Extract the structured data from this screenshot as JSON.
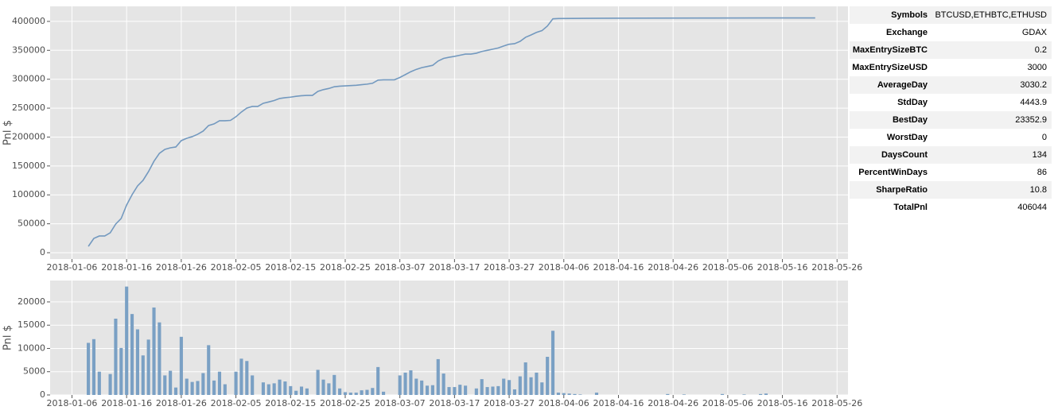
{
  "chart_data": [
    {
      "type": "line",
      "y_label": "Pnl $",
      "color": "#7399bf",
      "grid": true,
      "x": [
        "2018-01-09",
        "2018-01-10",
        "2018-01-11",
        "2018-01-12",
        "2018-01-13",
        "2018-01-14",
        "2018-01-15",
        "2018-01-16",
        "2018-01-17",
        "2018-01-18",
        "2018-01-19",
        "2018-01-20",
        "2018-01-21",
        "2018-01-22",
        "2018-01-23",
        "2018-01-24",
        "2018-01-25",
        "2018-01-26",
        "2018-01-27",
        "2018-01-28",
        "2018-01-29",
        "2018-01-30",
        "2018-01-31",
        "2018-02-01",
        "2018-02-02",
        "2018-02-03",
        "2018-02-04",
        "2018-02-05",
        "2018-02-06",
        "2018-02-07",
        "2018-02-08",
        "2018-02-09",
        "2018-02-10",
        "2018-02-11",
        "2018-02-12",
        "2018-02-13",
        "2018-02-14",
        "2018-02-15",
        "2018-02-16",
        "2018-02-17",
        "2018-02-18",
        "2018-02-19",
        "2018-02-20",
        "2018-02-21",
        "2018-02-22",
        "2018-02-23",
        "2018-02-24",
        "2018-02-25",
        "2018-02-26",
        "2018-02-27",
        "2018-02-28",
        "2018-03-01",
        "2018-03-02",
        "2018-03-03",
        "2018-03-04",
        "2018-03-05",
        "2018-03-06",
        "2018-03-07",
        "2018-03-08",
        "2018-03-09",
        "2018-03-10",
        "2018-03-11",
        "2018-03-12",
        "2018-03-13",
        "2018-03-14",
        "2018-03-15",
        "2018-03-16",
        "2018-03-17",
        "2018-03-18",
        "2018-03-19",
        "2018-03-20",
        "2018-03-21",
        "2018-03-22",
        "2018-03-23",
        "2018-03-24",
        "2018-03-25",
        "2018-03-26",
        "2018-03-27",
        "2018-03-28",
        "2018-03-29",
        "2018-03-30",
        "2018-03-31",
        "2018-04-01",
        "2018-04-02",
        "2018-04-03",
        "2018-04-04",
        "2018-04-05",
        "2018-04-10",
        "2018-04-20",
        "2018-05-01",
        "2018-05-13",
        "2018-05-22"
      ],
      "values": [
        11000,
        24700,
        28900,
        28900,
        34400,
        49500,
        59100,
        82500,
        100300,
        115500,
        125100,
        140200,
        158100,
        171800,
        178700,
        181400,
        182800,
        193800,
        197900,
        200700,
        204800,
        210300,
        219900,
        222700,
        228200,
        228200,
        228800,
        235100,
        243300,
        250200,
        252900,
        253000,
        258400,
        260700,
        263200,
        266700,
        268000,
        269000,
        270500,
        271500,
        272000,
        272000,
        279000,
        282000,
        284000,
        287000,
        288000,
        288500,
        289000,
        289500,
        290500,
        291500,
        293000,
        298500,
        299000,
        299000,
        299000,
        303000,
        308000,
        313000,
        317000,
        320000,
        322000,
        324000,
        331500,
        336000,
        338000,
        339500,
        341500,
        343500,
        343500,
        345000,
        348000,
        350000,
        352000,
        354000,
        357500,
        360500,
        361500,
        365500,
        372500,
        376500,
        381000,
        384000,
        392000,
        404500,
        405000,
        405300,
        405600,
        405800,
        406000,
        406044
      ],
      "xlim": [
        "2018-01-02",
        "2018-05-28"
      ],
      "xticks": [
        "2018-01-06",
        "2018-01-16",
        "2018-01-26",
        "2018-02-05",
        "2018-02-15",
        "2018-02-25",
        "2018-03-07",
        "2018-03-17",
        "2018-03-27",
        "2018-04-06",
        "2018-04-16",
        "2018-04-26",
        "2018-05-06",
        "2018-05-16",
        "2018-05-26"
      ],
      "ylim": [
        -11000,
        426000
      ],
      "yticks": [
        0,
        50000,
        100000,
        150000,
        200000,
        250000,
        300000,
        350000,
        400000
      ]
    },
    {
      "type": "bar",
      "y_label": "Pnl $",
      "color": "#7aa0c4",
      "grid": true,
      "x": [
        "2018-01-09",
        "2018-01-10",
        "2018-01-11",
        "2018-01-13",
        "2018-01-14",
        "2018-01-15",
        "2018-01-16",
        "2018-01-17",
        "2018-01-18",
        "2018-01-19",
        "2018-01-20",
        "2018-01-21",
        "2018-01-22",
        "2018-01-23",
        "2018-01-24",
        "2018-01-25",
        "2018-01-26",
        "2018-01-27",
        "2018-01-28",
        "2018-01-29",
        "2018-01-30",
        "2018-01-31",
        "2018-02-01",
        "2018-02-02",
        "2018-02-03",
        "2018-02-05",
        "2018-02-06",
        "2018-02-07",
        "2018-02-08",
        "2018-02-10",
        "2018-02-11",
        "2018-02-12",
        "2018-02-13",
        "2018-02-14",
        "2018-02-15",
        "2018-02-16",
        "2018-02-17",
        "2018-02-18",
        "2018-02-20",
        "2018-02-21",
        "2018-02-22",
        "2018-02-23",
        "2018-02-24",
        "2018-02-25",
        "2018-02-26",
        "2018-02-27",
        "2018-02-28",
        "2018-03-01",
        "2018-03-02",
        "2018-03-03",
        "2018-03-04",
        "2018-03-07",
        "2018-03-08",
        "2018-03-09",
        "2018-03-10",
        "2018-03-11",
        "2018-03-12",
        "2018-03-13",
        "2018-03-14",
        "2018-03-15",
        "2018-03-16",
        "2018-03-17",
        "2018-03-18",
        "2018-03-19",
        "2018-03-21",
        "2018-03-22",
        "2018-03-23",
        "2018-03-24",
        "2018-03-25",
        "2018-03-26",
        "2018-03-27",
        "2018-03-28",
        "2018-03-29",
        "2018-03-30",
        "2018-03-31",
        "2018-04-01",
        "2018-04-02",
        "2018-04-03",
        "2018-04-04",
        "2018-04-05",
        "2018-04-06",
        "2018-04-07",
        "2018-04-08",
        "2018-04-09",
        "2018-04-12",
        "2018-04-25",
        "2018-04-28",
        "2018-05-05",
        "2018-05-09",
        "2018-05-12",
        "2018-05-13"
      ],
      "values": [
        11200,
        12000,
        5000,
        4500,
        16400,
        10100,
        23300,
        17400,
        14100,
        8500,
        11900,
        18800,
        15600,
        4200,
        5200,
        1600,
        12500,
        3500,
        2800,
        3000,
        4700,
        10700,
        3100,
        5000,
        2300,
        5000,
        7800,
        7300,
        4200,
        2700,
        2300,
        2500,
        3300,
        2900,
        1900,
        900,
        1800,
        1400,
        5400,
        3300,
        2500,
        4300,
        1400,
        600,
        500,
        500,
        1000,
        1100,
        1500,
        6000,
        700,
        4200,
        4800,
        5300,
        3500,
        3100,
        2000,
        2100,
        7700,
        4600,
        1700,
        1700,
        2200,
        2000,
        1400,
        3400,
        1700,
        1800,
        1900,
        3500,
        3200,
        1200,
        4000,
        7000,
        3800,
        4800,
        2700,
        8200,
        13800,
        500,
        400,
        300,
        200,
        100,
        500,
        200,
        100,
        200,
        100,
        200,
        300
      ],
      "xlim": [
        "2018-01-02",
        "2018-05-28"
      ],
      "xticks": [
        "2018-01-06",
        "2018-01-16",
        "2018-01-26",
        "2018-02-05",
        "2018-02-15",
        "2018-02-25",
        "2018-03-07",
        "2018-03-17",
        "2018-03-27",
        "2018-04-06",
        "2018-04-16",
        "2018-04-26",
        "2018-05-06",
        "2018-05-16",
        "2018-05-26"
      ],
      "ylim": [
        0,
        24600
      ],
      "yticks": [
        0,
        5000,
        10000,
        15000,
        20000
      ]
    }
  ],
  "table": {
    "rows": [
      [
        "Symbols",
        "BTCUSD,ETHBTC,ETHUSD"
      ],
      [
        "Exchange",
        "GDAX"
      ],
      [
        "MaxEntrySizeBTC",
        0.2
      ],
      [
        "MaxEntrySizeUSD",
        3000
      ],
      [
        "AverageDay",
        3030.2
      ],
      [
        "StdDay",
        4443.9
      ],
      [
        "BestDay",
        23352.9
      ],
      [
        "WorstDay",
        0
      ],
      [
        "DaysCount",
        134
      ],
      [
        "PercentWinDays",
        86
      ],
      [
        "SharpeRatio",
        10.8
      ],
      [
        "TotalPnl",
        406044
      ]
    ]
  }
}
